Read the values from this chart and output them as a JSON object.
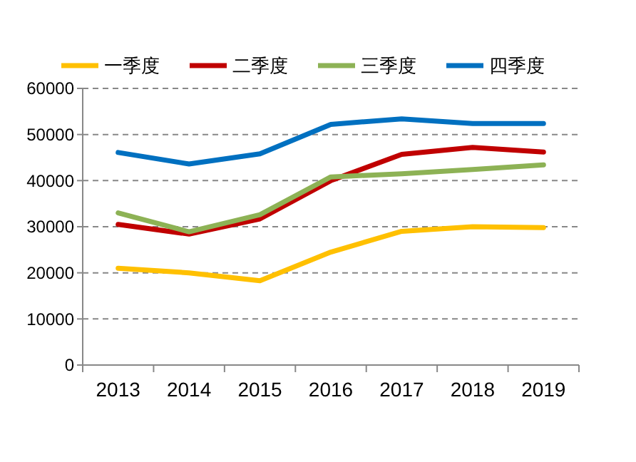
{
  "chart_data": {
    "type": "line",
    "categories": [
      "2013",
      "2014",
      "2015",
      "2016",
      "2017",
      "2018",
      "2019"
    ],
    "series": [
      {
        "name": "一季度",
        "color": "#ffc000",
        "values": [
          21000,
          20000,
          18300,
          24500,
          29000,
          30000,
          29800
        ]
      },
      {
        "name": "二季度",
        "color": "#c00000",
        "values": [
          30500,
          28400,
          31700,
          40000,
          45700,
          47200,
          46200
        ]
      },
      {
        "name": "三季度",
        "color": "#8db255",
        "values": [
          33000,
          28900,
          32600,
          40800,
          41500,
          42400,
          43400
        ]
      },
      {
        "name": "四季度",
        "color": "#0070c0",
        "values": [
          46100,
          43600,
          45800,
          52200,
          53400,
          52400,
          52400
        ]
      }
    ],
    "ylim": [
      0,
      60000
    ],
    "yticks": [
      0,
      10000,
      20000,
      30000,
      40000,
      50000,
      60000
    ],
    "grid": "y",
    "legend": "top",
    "marker": "none",
    "line_style": "solid"
  }
}
